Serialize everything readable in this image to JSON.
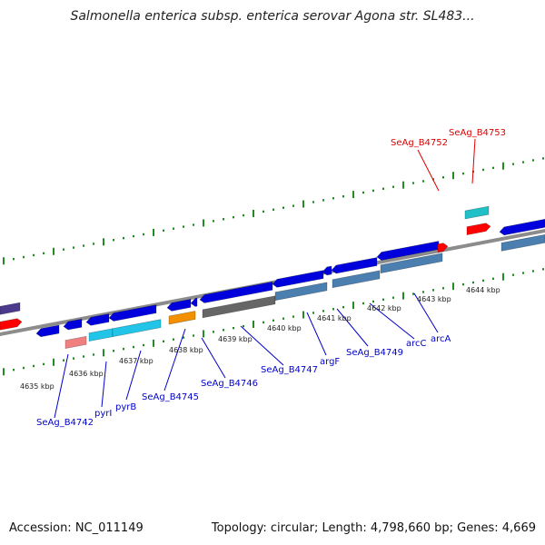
{
  "title": "Salmonella enterica subsp. enterica serovar Agona str. SL483...",
  "footer": {
    "accession": "Accession: NC_011149",
    "summary": "Topology: circular; Length: 4,798,660 bp; Genes: 4,669"
  },
  "colors": {
    "backbone": "#8c8c8c",
    "ticks": "#228b22",
    "gene_blue": "#0000dd",
    "gene_cyan": "#22c4e8",
    "gene_steel": "#4a7fb0",
    "gene_gray": "#666666",
    "gene_orange": "#f29000",
    "gene_pink": "#f08080",
    "gene_red": "#ff0000",
    "gene_teal": "#20c0c8",
    "gene_purple": "#4b3a8c",
    "label_blue": "#0000cc",
    "label_red": "#dd0000"
  },
  "scale_labels": [
    "4635 kbp",
    "4636 kbp",
    "4637 kbp",
    "4638 kbp",
    "4639 kbp",
    "4640 kbp",
    "4641 kbp",
    "4642 kbp",
    "4643 kbp",
    "4644 kbp"
  ],
  "gene_labels": [
    {
      "id": "b4742",
      "text": "SeAg_B4742",
      "color": "blue"
    },
    {
      "id": "pyrI",
      "text": "pyrI",
      "color": "blue"
    },
    {
      "id": "pyrB",
      "text": "pyrB",
      "color": "blue"
    },
    {
      "id": "b4745",
      "text": "SeAg_B4745",
      "color": "blue"
    },
    {
      "id": "b4746",
      "text": "SeAg_B4746",
      "color": "blue"
    },
    {
      "id": "b4747",
      "text": "SeAg_B4747",
      "color": "blue"
    },
    {
      "id": "argF",
      "text": "argF",
      "color": "blue"
    },
    {
      "id": "b4749",
      "text": "SeAg_B4749",
      "color": "blue"
    },
    {
      "id": "arcC",
      "text": "arcC",
      "color": "blue"
    },
    {
      "id": "arcA",
      "text": "arcA",
      "color": "blue"
    },
    {
      "id": "b4752",
      "text": "SeAg_B4752",
      "color": "red"
    },
    {
      "id": "b4753",
      "text": "SeAg_B4753",
      "color": "red"
    }
  ]
}
